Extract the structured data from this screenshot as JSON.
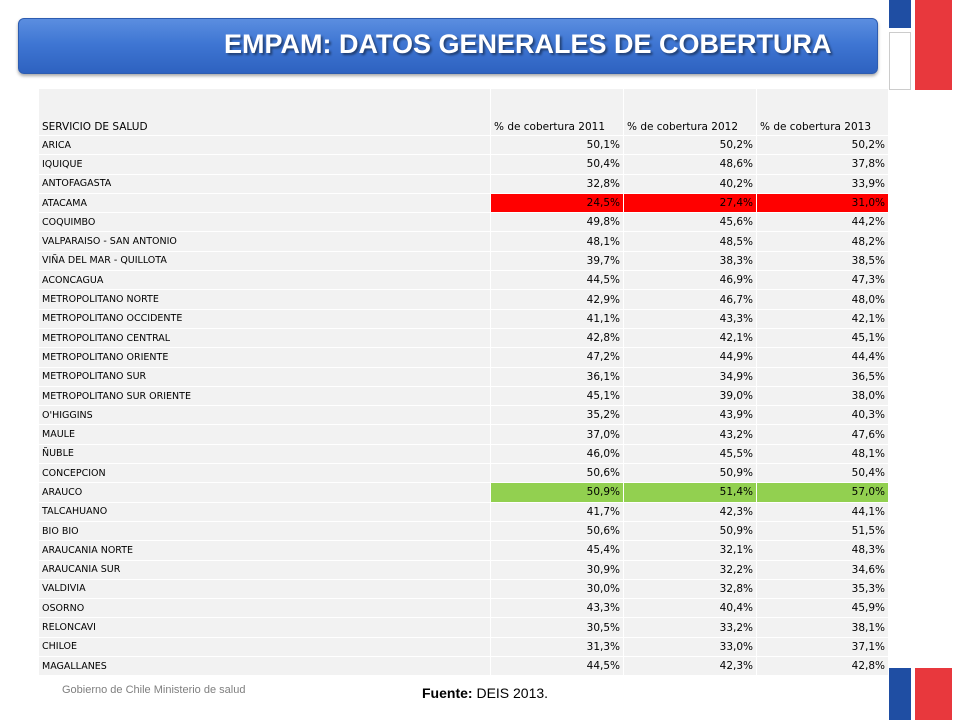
{
  "title": "EMPAM: DATOS GENERALES DE COBERTURA",
  "table": {
    "headers": [
      "SERVICIO DE SALUD",
      "% de cobertura 2011",
      "% de cobertura 2012",
      "% de cobertura 2013"
    ],
    "rows": [
      {
        "name": "ARICA",
        "v2011": "50,1%",
        "v2012": "50,2%",
        "v2013": "50,2%"
      },
      {
        "name": "IQUIQUE",
        "v2011": "50,4%",
        "v2012": "48,6%",
        "v2013": "37,8%"
      },
      {
        "name": "ANTOFAGASTA",
        "v2011": "32,8%",
        "v2012": "40,2%",
        "v2013": "33,9%"
      },
      {
        "name": "ATACAMA",
        "v2011": "24,5%",
        "v2012": "27,4%",
        "v2013": "31,0%",
        "highlight": "red"
      },
      {
        "name": "COQUIMBO",
        "v2011": "49,8%",
        "v2012": "45,6%",
        "v2013": "44,2%"
      },
      {
        "name": "VALPARAISO - SAN ANTONIO",
        "v2011": "48,1%",
        "v2012": "48,5%",
        "v2013": "48,2%"
      },
      {
        "name": "VIÑA DEL MAR - QUILLOTA",
        "v2011": "39,7%",
        "v2012": "38,3%",
        "v2013": "38,5%"
      },
      {
        "name": "ACONCAGUA",
        "v2011": "44,5%",
        "v2012": "46,9%",
        "v2013": "47,3%"
      },
      {
        "name": "METROPOLITANO NORTE",
        "v2011": "42,9%",
        "v2012": "46,7%",
        "v2013": "48,0%"
      },
      {
        "name": "METROPOLITANO OCCIDENTE",
        "v2011": "41,1%",
        "v2012": "43,3%",
        "v2013": "42,1%"
      },
      {
        "name": "METROPOLITANO CENTRAL",
        "v2011": "42,8%",
        "v2012": "42,1%",
        "v2013": "45,1%"
      },
      {
        "name": "METROPOLITANO ORIENTE",
        "v2011": "47,2%",
        "v2012": "44,9%",
        "v2013": "44,4%"
      },
      {
        "name": "METROPOLITANO SUR",
        "v2011": "36,1%",
        "v2012": "34,9%",
        "v2013": "36,5%"
      },
      {
        "name": "METROPOLITANO SUR ORIENTE",
        "v2011": "45,1%",
        "v2012": "39,0%",
        "v2013": "38,0%"
      },
      {
        "name": "O'HIGGINS",
        "v2011": "35,2%",
        "v2012": "43,9%",
        "v2013": "40,3%"
      },
      {
        "name": "MAULE",
        "v2011": "37,0%",
        "v2012": "43,2%",
        "v2013": "47,6%"
      },
      {
        "name": "ÑUBLE",
        "v2011": "46,0%",
        "v2012": "45,5%",
        "v2013": "48,1%"
      },
      {
        "name": "CONCEPCION",
        "v2011": "50,6%",
        "v2012": "50,9%",
        "v2013": "50,4%"
      },
      {
        "name": "ARAUCO",
        "v2011": "50,9%",
        "v2012": "51,4%",
        "v2013": "57,0%",
        "highlight": "green"
      },
      {
        "name": "TALCAHUANO",
        "v2011": "41,7%",
        "v2012": "42,3%",
        "v2013": "44,1%"
      },
      {
        "name": "BIO BIO",
        "v2011": "50,6%",
        "v2012": "50,9%",
        "v2013": "51,5%"
      },
      {
        "name": "ARAUCANIA NORTE",
        "v2011": "45,4%",
        "v2012": "32,1%",
        "v2013": "48,3%"
      },
      {
        "name": "ARAUCANIA SUR",
        "v2011": "30,9%",
        "v2012": "32,2%",
        "v2013": "34,6%"
      },
      {
        "name": "VALDIVIA",
        "v2011": "30,0%",
        "v2012": "32,8%",
        "v2013": "35,3%"
      },
      {
        "name": "OSORNO",
        "v2011": "43,3%",
        "v2012": "40,4%",
        "v2013": "45,9%"
      },
      {
        "name": "RELONCAVI",
        "v2011": "30,5%",
        "v2012": "33,2%",
        "v2013": "38,1%"
      },
      {
        "name": "CHILOE",
        "v2011": "31,3%",
        "v2012": "33,0%",
        "v2013": "37,1%"
      },
      {
        "name": "MAGALLANES",
        "v2011": "44,5%",
        "v2012": "42,3%",
        "v2013": "42,8%"
      }
    ]
  },
  "footer": {
    "org": "Gobierno de Chile  Ministerio de salud",
    "source_label": "Fuente:",
    "source_value": " DEIS 2013."
  },
  "colors": {
    "title_bar": "#3f76d3",
    "highlight_red": "#ff0000",
    "highlight_green": "#92d050",
    "flag_blue": "#1f4ea3",
    "flag_red": "#e8383d"
  }
}
